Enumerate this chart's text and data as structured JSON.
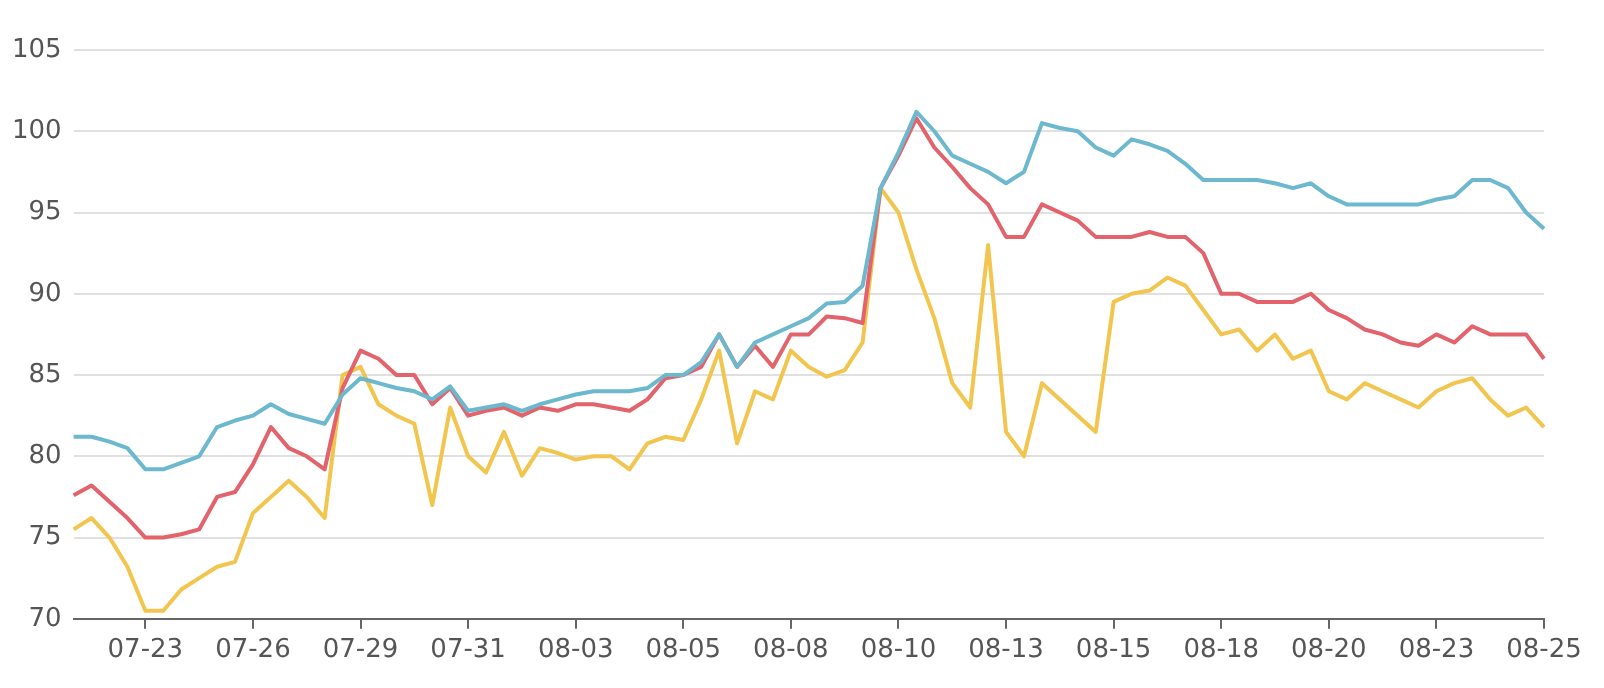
{
  "chart_data": {
    "type": "line",
    "categories": [
      null,
      null,
      null,
      null,
      "07-23",
      null,
      null,
      null,
      null,
      null,
      "07-26",
      null,
      null,
      null,
      null,
      null,
      "07-29",
      null,
      null,
      null,
      null,
      null,
      "07-31",
      null,
      null,
      null,
      null,
      null,
      "08-03",
      null,
      null,
      null,
      null,
      null,
      "08-05",
      null,
      null,
      null,
      null,
      null,
      "08-08",
      null,
      null,
      null,
      null,
      null,
      "08-10",
      null,
      null,
      null,
      null,
      null,
      "08-13",
      null,
      null,
      null,
      null,
      null,
      "08-15",
      null,
      null,
      null,
      null,
      null,
      "08-18",
      null,
      null,
      null,
      null,
      null,
      "08-20",
      null,
      null,
      null,
      null,
      null,
      "08-23",
      null,
      null,
      null,
      null,
      null,
      "08-25"
    ],
    "series": [
      {
        "color": "#6cb8cf",
        "values": [
          81.2,
          81.2,
          80.9,
          80.5,
          79.2,
          79.2,
          79.6,
          80.0,
          81.8,
          82.2,
          82.5,
          83.2,
          82.6,
          82.3,
          82.0,
          83.8,
          84.8,
          84.5,
          84.2,
          84.0,
          83.5,
          84.3,
          82.8,
          83.0,
          83.2,
          82.8,
          83.2,
          83.5,
          83.8,
          84.0,
          84.0,
          84.0,
          84.2,
          85.0,
          85.0,
          85.8,
          87.5,
          85.5,
          87.0,
          87.5,
          88.0,
          88.5,
          89.4,
          89.5,
          90.5,
          96.5,
          98.7,
          101.2,
          100.0,
          98.5,
          98.0,
          97.5,
          96.8,
          97.5,
          100.5,
          100.2,
          100.0,
          99.0,
          98.5,
          99.5,
          99.2,
          98.8,
          98.0,
          97.0,
          97.0,
          97.0,
          97.0,
          96.8,
          96.5,
          96.8,
          96.0,
          95.5,
          95.5,
          95.5,
          95.5,
          95.5,
          95.8,
          96.0,
          97.0,
          97.0,
          96.5,
          95.0,
          94.0
        ]
      },
      {
        "color": "#e2636b",
        "values": [
          77.6,
          78.2,
          77.2,
          76.2,
          75.0,
          75.0,
          75.2,
          75.5,
          77.5,
          77.8,
          79.5,
          81.8,
          80.5,
          80.0,
          79.2,
          84.2,
          86.5,
          86.0,
          85.0,
          85.0,
          83.2,
          84.2,
          82.5,
          82.8,
          83.0,
          82.5,
          83.0,
          82.8,
          83.2,
          83.2,
          83.0,
          82.8,
          83.5,
          84.8,
          85.0,
          85.5,
          87.5,
          85.5,
          86.8,
          85.5,
          87.5,
          87.5,
          88.6,
          88.5,
          88.2,
          96.5,
          98.5,
          100.8,
          99.0,
          97.8,
          96.5,
          95.5,
          93.5,
          93.5,
          95.5,
          95.0,
          94.5,
          93.5,
          93.5,
          93.5,
          93.8,
          93.5,
          93.5,
          92.5,
          90.0,
          90.0,
          89.5,
          89.5,
          89.5,
          90.0,
          89.0,
          88.5,
          87.8,
          87.5,
          87.0,
          86.8,
          87.5,
          87.0,
          88.0,
          87.5,
          87.5,
          87.5,
          86.0
        ]
      },
      {
        "color": "#f2c64e",
        "values": [
          75.5,
          76.2,
          75.0,
          73.2,
          70.5,
          70.5,
          71.8,
          72.5,
          73.2,
          73.5,
          76.5,
          77.5,
          78.5,
          77.5,
          76.2,
          85.0,
          85.5,
          83.2,
          82.5,
          82.0,
          77.0,
          83.0,
          80.0,
          79.0,
          81.5,
          78.8,
          80.5,
          80.2,
          79.8,
          80.0,
          80.0,
          79.2,
          80.8,
          81.2,
          81.0,
          83.5,
          86.5,
          80.8,
          84.0,
          83.5,
          86.5,
          85.5,
          84.9,
          85.3,
          87.0,
          96.5,
          95.0,
          91.5,
          88.5,
          84.5,
          83.0,
          93.0,
          81.5,
          80.0,
          84.5,
          83.5,
          82.5,
          81.5,
          89.5,
          90.0,
          90.2,
          91.0,
          90.5,
          89.0,
          87.5,
          87.8,
          86.5,
          87.5,
          86.0,
          86.5,
          84.0,
          83.5,
          84.5,
          84.0,
          83.5,
          83.0,
          84.0,
          84.5,
          84.8,
          83.5,
          82.5,
          83.0,
          81.8
        ]
      }
    ],
    "ylim": [
      70,
      105
    ],
    "yticks": [
      70,
      75,
      80,
      85,
      90,
      95,
      100,
      105
    ],
    "grid": "y",
    "legend": false,
    "marker": "none",
    "line_style": "solid"
  }
}
